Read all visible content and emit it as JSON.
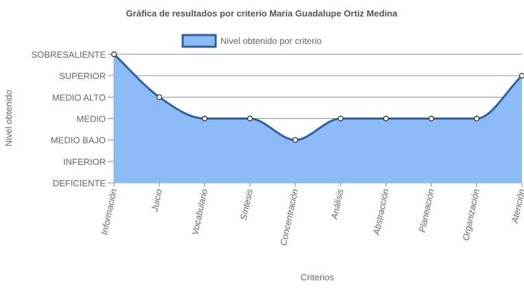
{
  "chart_data": {
    "type": "area",
    "title": "Gráfica de resultados por criterio Maria Guadalupe Ortiz Medina",
    "xlabel": "Criterios",
    "ylabel": "Nivel obtenido",
    "legend_position": "top-center",
    "grid": true,
    "y_levels": [
      "DEFICIENTE",
      "INFERIOR",
      "MEDIO BAJO",
      "MEDIO",
      "MEDIO ALTO",
      "SUPERIOR",
      "SOBRESALIENTE"
    ],
    "ylim": [
      0,
      6
    ],
    "categories": [
      "Información",
      "Juicio",
      "Vocabulario",
      "Síntesis",
      "Concentración",
      "Análisis",
      "Abstracción",
      "Planeación",
      "Organización",
      "Atención"
    ],
    "series": [
      {
        "name": "Nivel obtenido por criterio",
        "values": [
          6,
          4,
          3,
          3,
          2,
          3,
          3,
          3,
          3,
          5
        ],
        "line_color": "#2f5f9e",
        "fill_color": "#8cbcf7"
      }
    ],
    "colors": {
      "grid": "#8a8a8a",
      "axis_text": "#666666",
      "title": "#555555"
    }
  }
}
